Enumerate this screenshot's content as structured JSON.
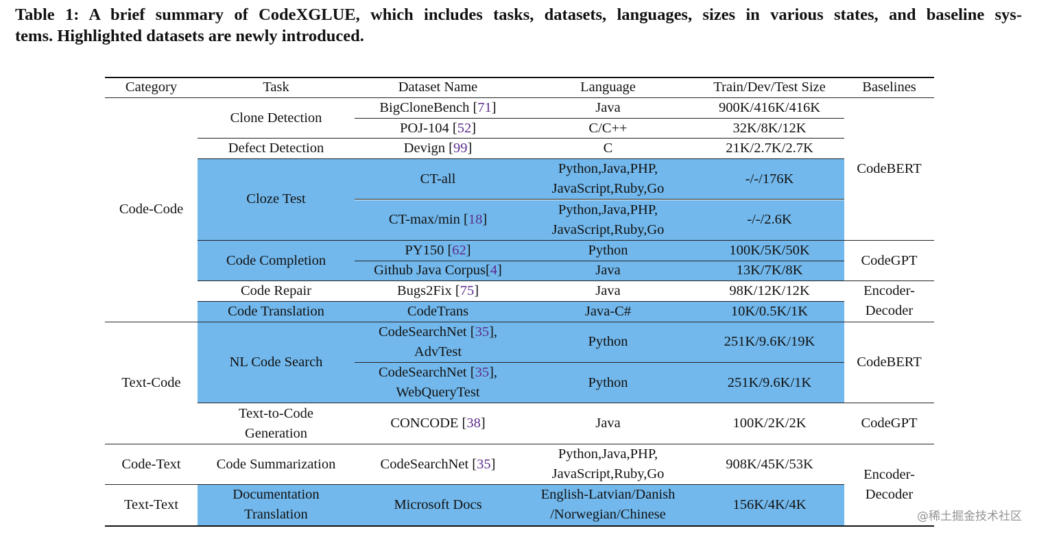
{
  "caption": [
    "Table 1: A brief summary of CodeXGLUE, which includes tasks, datasets, languages, sizes in various states, and baseline sys-",
    "tems. Highlighted datasets are newly introduced."
  ],
  "table": {
    "header": [
      "Category",
      "Task",
      "Dataset Name",
      "Language",
      "Train/Dev/Test Size",
      "Baselines"
    ],
    "categories": [
      "Code-Code",
      "Text-Code",
      "Code-Text",
      "Text-Text"
    ],
    "tasks": [
      "Clone Detection",
      "Defect Detection",
      "Cloze Test",
      "Code Completion",
      "Code Repair",
      "Code Translation",
      "NL Code Search",
      [
        "Text-to-Code",
        "Generation"
      ],
      "Code Summarization",
      [
        "Documentation",
        "Translation"
      ]
    ],
    "baselines": [
      "CodeBERT",
      "CodeGPT",
      [
        "Encoder-",
        "Decoder"
      ],
      "CodeBERT",
      "CodeGPT",
      [
        "Encoder-",
        "Decoder"
      ]
    ],
    "rows": [
      {
        "dataset": [
          [
            "BigCloneBench [",
            "71",
            "]"
          ]
        ],
        "language": "Java",
        "size": "900K/416K/416K",
        "highlighted": false
      },
      {
        "dataset": [
          [
            "POJ-104 [",
            "52",
            "]"
          ]
        ],
        "language": "C/C++",
        "size": "32K/8K/12K",
        "highlighted": false
      },
      {
        "dataset": [
          [
            "Devign [",
            "99",
            "]"
          ]
        ],
        "language": "C",
        "size": "21K/2.7K/2.7K",
        "highlighted": false
      },
      {
        "dataset": "CT-all",
        "language": [
          "Python,Java,PHP,",
          "JavaScript,Ruby,Go"
        ],
        "size": "-/-/176K",
        "highlighted": true
      },
      {
        "dataset": [
          [
            "CT-max/min [",
            "18",
            "]"
          ]
        ],
        "language": [
          "Python,Java,PHP,",
          "JavaScript,Ruby,Go"
        ],
        "size": "-/-/2.6K",
        "highlighted": true
      },
      {
        "dataset": [
          [
            "PY150 [",
            "62",
            "]"
          ]
        ],
        "language": "Python",
        "size": "100K/5K/50K",
        "highlighted": true
      },
      {
        "dataset": [
          [
            "Github Java Corpus[",
            "4",
            "]"
          ]
        ],
        "language": "Java",
        "size": "13K/7K/8K",
        "highlighted": true
      },
      {
        "dataset": [
          [
            "Bugs2Fix [",
            "75",
            "]"
          ]
        ],
        "language": "Java",
        "size": "98K/12K/12K",
        "highlighted": false
      },
      {
        "dataset": "CodeTrans",
        "language": "Java-C#",
        "size": "10K/0.5K/1K",
        "highlighted": true
      },
      {
        "dataset": [
          [
            "CodeSearchNet [",
            "35",
            "],"
          ],
          "AdvTest"
        ],
        "language": "Python",
        "size": "251K/9.6K/19K",
        "highlighted": true
      },
      {
        "dataset": [
          [
            "CodeSearchNet [",
            "35",
            "],"
          ],
          "WebQueryTest"
        ],
        "language": "Python",
        "size": "251K/9.6K/1K",
        "highlighted": true
      },
      {
        "dataset": [
          [
            "CONCODE [",
            "38",
            "]"
          ]
        ],
        "language": "Java",
        "size": "100K/2K/2K",
        "highlighted": false
      },
      {
        "dataset": [
          [
            "CodeSearchNet [",
            "35",
            "]"
          ]
        ],
        "language": [
          "Python,Java,PHP,",
          "JavaScript,Ruby,Go"
        ],
        "size": "908K/45K/53K",
        "highlighted": false
      },
      {
        "dataset": "Microsoft Docs",
        "language": [
          "English-Latvian/Danish",
          "/Norwegian/Chinese"
        ],
        "size": "156K/4K/4K",
        "highlighted": true
      }
    ]
  },
  "watermark": "@稀土掘金技术社区"
}
